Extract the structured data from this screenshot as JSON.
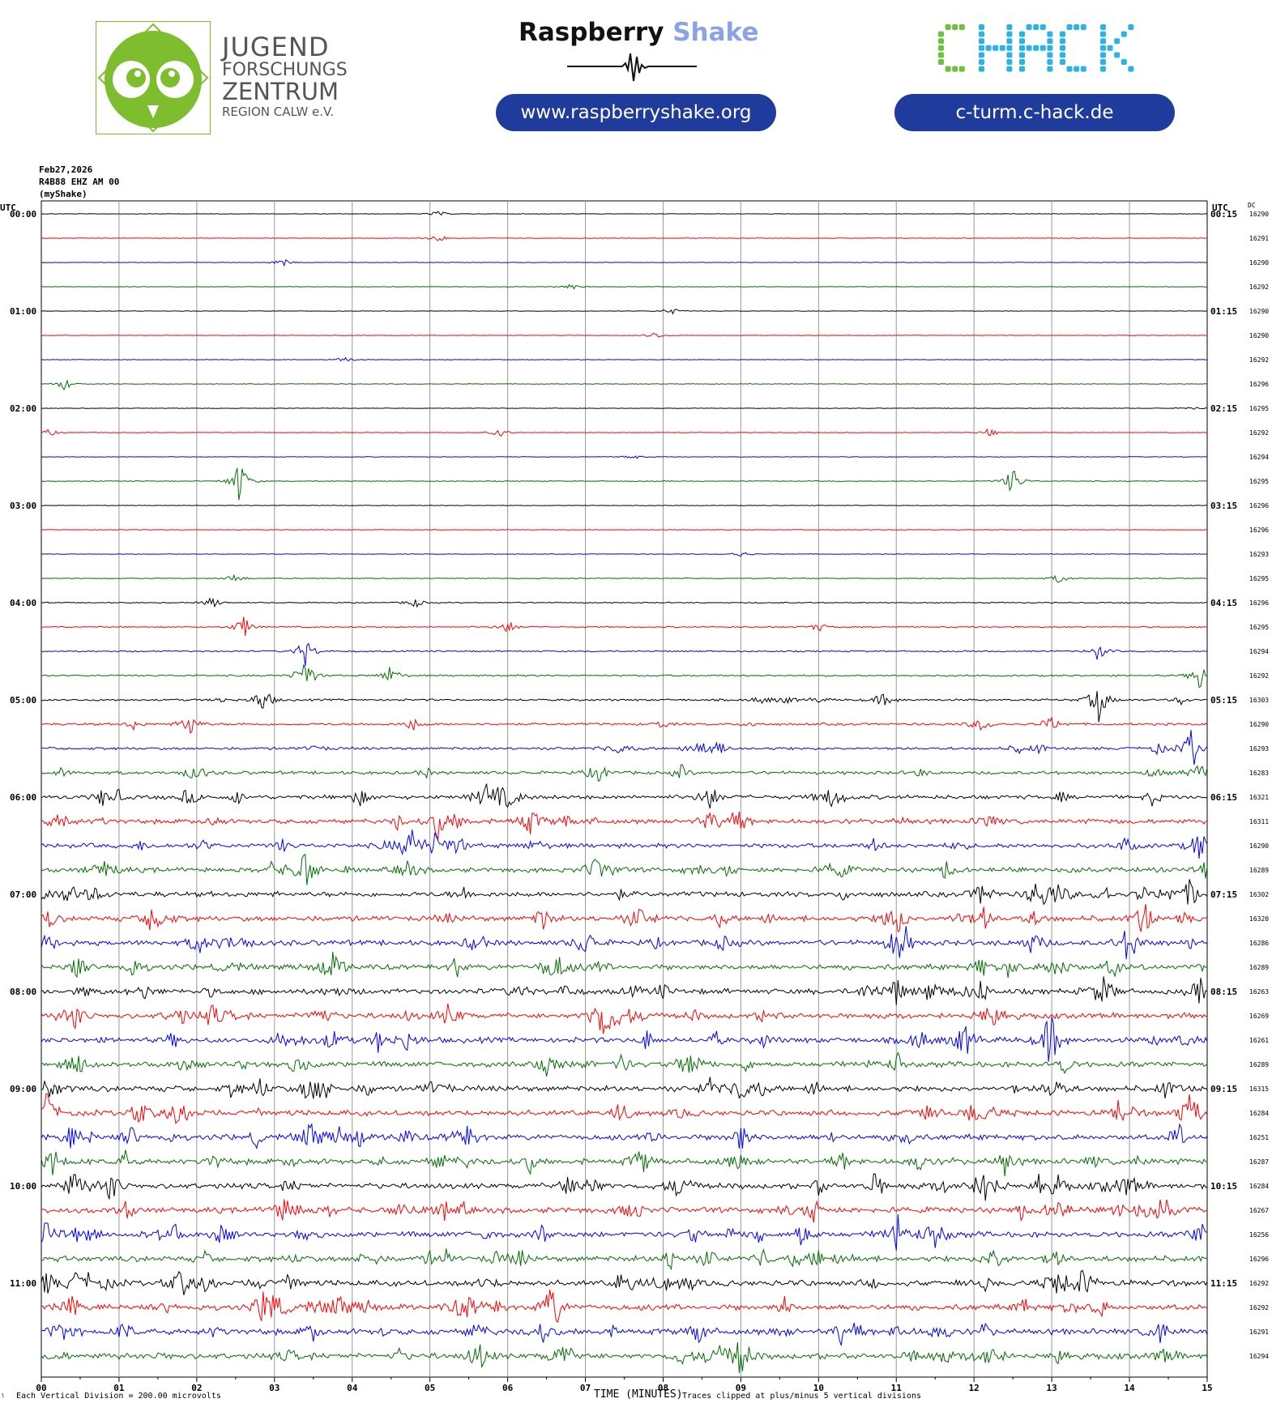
{
  "header": {
    "jfz_lines": [
      "JUGEND",
      "FORSCHUNGS",
      "ZENTRUM",
      "REGION CALW e.V."
    ],
    "rs_title_a": "Raspberry",
    "rs_title_b": "Shake",
    "rs_url": "www.raspberryshake.org",
    "chack_logo_text": "CHACK",
    "chack_url": "c-turm.c-hack.de"
  },
  "meta": {
    "date": "Feb27,2026",
    "station": "R4B88 EHZ AM 00",
    "network": "(myShake)"
  },
  "footer": {
    "scale_note": "Each Vertical Division = 200.00 microvolts",
    "xlabel": "TIME (MINUTES)",
    "clip_note": "Traces clipped at plus/minus 5 vertical divisions"
  },
  "colors": {
    "trace_cycle": [
      "#000000",
      "#ff0000",
      "#0000ff",
      "#007000"
    ],
    "pill": "#1f3b9b",
    "shake": "#8aa2e8",
    "owl_green": "#7dbd2e",
    "chack_green": "#6cc23c",
    "chack_cyan": "#2ab4e6"
  },
  "chart_data": {
    "type": "line",
    "title": "",
    "xlabel": "TIME (MINUTES)",
    "ylabel": "",
    "x_range": [
      0,
      15
    ],
    "x_ticks": [
      "00",
      "01",
      "02",
      "03",
      "04",
      "05",
      "06",
      "07",
      "08",
      "09",
      "10",
      "11",
      "12",
      "13",
      "14",
      "15"
    ],
    "left_axis_title": "UTC",
    "right_axis_title": "UTC",
    "dc_title": "DC",
    "left_hour_labels": [
      "00:00",
      "01:00",
      "02:00",
      "03:00",
      "04:00",
      "05:00",
      "06:00",
      "07:00",
      "08:00",
      "09:00",
      "10:00",
      "11:00"
    ],
    "right_hour_labels": [
      "00:15",
      "01:15",
      "02:15",
      "03:15",
      "04:15",
      "05:15",
      "06:15",
      "07:15",
      "08:15",
      "09:15",
      "10:15",
      "11:15"
    ],
    "dc_values": [
      "16290",
      "16291",
      "16290",
      "16292",
      "16290",
      "16290",
      "16292",
      "16296",
      "16295",
      "16292",
      "16294",
      "16295",
      "16296",
      "16296",
      "16293",
      "16295",
      "16296",
      "16295",
      "16294",
      "16292",
      "16303",
      "16290",
      "16293",
      "16283",
      "16321",
      "16311",
      "16290",
      "16289",
      "16302",
      "16320",
      "16286",
      "16289",
      "16263",
      "16269",
      "16261",
      "16289",
      "16315",
      "16284",
      "16251",
      "16287",
      "16284",
      "16267",
      "16256",
      "16296",
      "16292",
      "16292",
      "16291",
      "16294"
    ],
    "activity": [
      0.25,
      0.25,
      0.25,
      0.25,
      0.25,
      0.25,
      0.25,
      0.3,
      0.25,
      0.3,
      0.3,
      0.4,
      0.3,
      0.3,
      0.3,
      0.4,
      0.5,
      0.6,
      0.7,
      0.8,
      1.0,
      1.1,
      1.3,
      1.6,
      2.0,
      2.2,
      2.2,
      2.3,
      2.5,
      2.6,
      2.6,
      2.6,
      2.6,
      2.6,
      2.6,
      2.6,
      2.7,
      2.7,
      2.7,
      2.7,
      2.7,
      2.7,
      2.7,
      2.7,
      2.8,
      2.8,
      2.8,
      2.8
    ],
    "events": [
      {
        "row": 0,
        "t": 5.1,
        "amp": 4
      },
      {
        "row": 1,
        "t": 5.1,
        "amp": 6
      },
      {
        "row": 2,
        "t": 3.1,
        "amp": 6
      },
      {
        "row": 3,
        "t": 6.8,
        "amp": 5
      },
      {
        "row": 4,
        "t": 8.1,
        "amp": 5
      },
      {
        "row": 5,
        "t": 7.9,
        "amp": 5
      },
      {
        "row": 6,
        "t": 3.9,
        "amp": 5
      },
      {
        "row": 7,
        "t": 0.3,
        "amp": 8
      },
      {
        "row": 8,
        "t": 14.8,
        "amp": 3
      },
      {
        "row": 9,
        "t": 0.1,
        "amp": 5
      },
      {
        "row": 9,
        "t": 5.9,
        "amp": 6
      },
      {
        "row": 9,
        "t": 12.2,
        "amp": 6
      },
      {
        "row": 10,
        "t": 7.6,
        "amp": 4
      },
      {
        "row": 11,
        "t": 2.55,
        "amp": 30
      },
      {
        "row": 11,
        "t": 12.5,
        "amp": 20
      },
      {
        "row": 14,
        "t": 9.0,
        "amp": 5
      },
      {
        "row": 15,
        "t": 2.5,
        "amp": 7
      },
      {
        "row": 15,
        "t": 13.1,
        "amp": 7
      },
      {
        "row": 16,
        "t": 2.2,
        "amp": 8
      },
      {
        "row": 16,
        "t": 4.8,
        "amp": 7
      },
      {
        "row": 17,
        "t": 2.6,
        "amp": 16
      },
      {
        "row": 17,
        "t": 6.0,
        "amp": 10
      },
      {
        "row": 17,
        "t": 10.0,
        "amp": 6
      },
      {
        "row": 18,
        "t": 3.4,
        "amp": 20
      },
      {
        "row": 18,
        "t": 13.6,
        "amp": 12
      },
      {
        "row": 19,
        "t": 3.4,
        "amp": 26
      },
      {
        "row": 19,
        "t": 4.5,
        "amp": 14
      },
      {
        "row": 19,
        "t": 14.9,
        "amp": 20
      },
      {
        "row": 20,
        "t": 2.85,
        "amp": 20
      },
      {
        "row": 20,
        "t": 13.6,
        "amp": 30
      },
      {
        "row": 21,
        "t": 1.9,
        "amp": 18
      },
      {
        "row": 22,
        "t": 14.8,
        "amp": 30
      },
      {
        "row": 24,
        "t": 8.6,
        "amp": 20
      },
      {
        "row": 25,
        "t": 5.1,
        "amp": 20
      },
      {
        "row": 26,
        "t": 14.9,
        "amp": 24
      },
      {
        "row": 27,
        "t": 3.4,
        "amp": 18
      },
      {
        "row": 28,
        "t": 14.8,
        "amp": 22
      },
      {
        "row": 29,
        "t": 10.95,
        "amp": 24
      },
      {
        "row": 30,
        "t": 11.0,
        "amp": 26
      },
      {
        "row": 32,
        "t": 11.0,
        "amp": 20
      },
      {
        "row": 33,
        "t": 3.6,
        "amp": 18
      },
      {
        "row": 34,
        "t": 13.0,
        "amp": 20
      },
      {
        "row": 36,
        "t": 3.45,
        "amp": 18
      },
      {
        "row": 36,
        "t": 9.0,
        "amp": 22
      },
      {
        "row": 37,
        "t": 12.0,
        "amp": 16
      },
      {
        "row": 38,
        "t": 9.0,
        "amp": 18
      },
      {
        "row": 39,
        "t": 12.4,
        "amp": 18
      },
      {
        "row": 40,
        "t": 12.1,
        "amp": 14
      },
      {
        "row": 41,
        "t": 7.6,
        "amp": 20
      },
      {
        "row": 42,
        "t": 9.8,
        "amp": 18
      },
      {
        "row": 43,
        "t": 8.1,
        "amp": 16
      },
      {
        "row": 44,
        "t": 1.8,
        "amp": 22
      },
      {
        "row": 44,
        "t": 3.2,
        "amp": 18
      },
      {
        "row": 45,
        "t": 6.6,
        "amp": 22
      },
      {
        "row": 46,
        "t": 14.4,
        "amp": 18
      },
      {
        "row": 47,
        "t": 9.0,
        "amp": 22
      }
    ]
  }
}
